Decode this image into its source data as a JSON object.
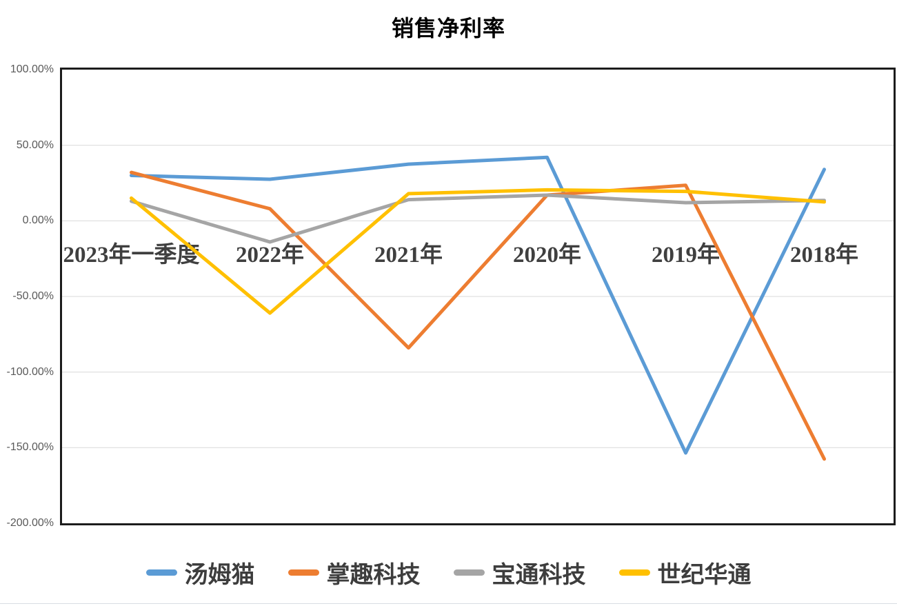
{
  "chart_data": {
    "type": "line",
    "title": "销售净利率",
    "categories": [
      "2023年一季度",
      "2022年",
      "2021年",
      "2020年",
      "2019年",
      "2018年"
    ],
    "series": [
      {
        "name": "汤姆猫",
        "color": "#5B9BD5",
        "values": [
          30.0,
          27.5,
          37.5,
          42.0,
          -153.5,
          34.0
        ]
      },
      {
        "name": "掌趣科技",
        "color": "#ED7D31",
        "values": [
          32.0,
          8.0,
          -84.0,
          17.0,
          23.5,
          -157.5
        ]
      },
      {
        "name": "宝通科技",
        "color": "#A5A5A5",
        "values": [
          13.0,
          -14.0,
          14.0,
          17.0,
          12.0,
          13.5
        ]
      },
      {
        "name": "世纪华通",
        "color": "#FFC000",
        "values": [
          15.0,
          -61.0,
          18.0,
          20.5,
          19.5,
          12.5
        ]
      }
    ],
    "ylim": [
      -200,
      100
    ],
    "ytick_step": 50,
    "ytick_labels": [
      "100.00%",
      "50.00%",
      "0.00%",
      "-50.00%",
      "-100.00%",
      "-150.00%",
      "-200.00%"
    ],
    "grid": "horizontal-only",
    "legend_position": "bottom",
    "colors": {
      "gridline": "#D9D9D9",
      "plot_border": "#1C1C1C",
      "ytick_text": "#595959",
      "category_text": "#3F3F3F",
      "title_text": "#000000"
    }
  }
}
